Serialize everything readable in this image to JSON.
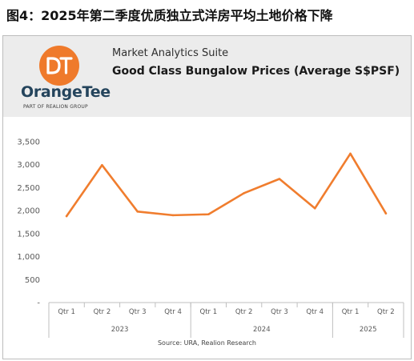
{
  "figure_title": "图4：2025年第二季度优质独立式洋房平均土地价格下降",
  "brand": {
    "name": "OrangeTee",
    "tagline": "PART OF REALION GROUP",
    "logo_icon": "orangetee-logo-icon",
    "accent_color": "#ef7a2b"
  },
  "header": {
    "suite_title": "Market Analytics Suite"
  },
  "source_note": "Source: URA, Realion Research",
  "chart_data": {
    "type": "line",
    "title": "Good Class Bungalow Prices (Average S$PSF)",
    "categories": [
      "Qtr 1",
      "Qtr 2",
      "Qtr 3",
      "Qtr 4",
      "Qtr 1",
      "Qtr 2",
      "Qtr 3",
      "Qtr 4",
      "Qtr 1",
      "Qtr 2"
    ],
    "category_groups": [
      {
        "label": "2023",
        "count": 4
      },
      {
        "label": "2024",
        "count": 4
      },
      {
        "label": "2025",
        "count": 2
      }
    ],
    "series": [
      {
        "values": [
          1880,
          2990,
          1980,
          1900,
          1920,
          2380,
          2690,
          2050,
          3240,
          1940
        ],
        "color": "#f07d2e"
      }
    ],
    "y_tick_labels": [
      "-",
      "500",
      "1,000",
      "1,500",
      "2,000",
      "2,500",
      "3,000",
      "3,500"
    ],
    "ylim": [
      0,
      3500
    ],
    "xlabel": "",
    "ylabel": "",
    "grid": false,
    "legend": "none"
  }
}
